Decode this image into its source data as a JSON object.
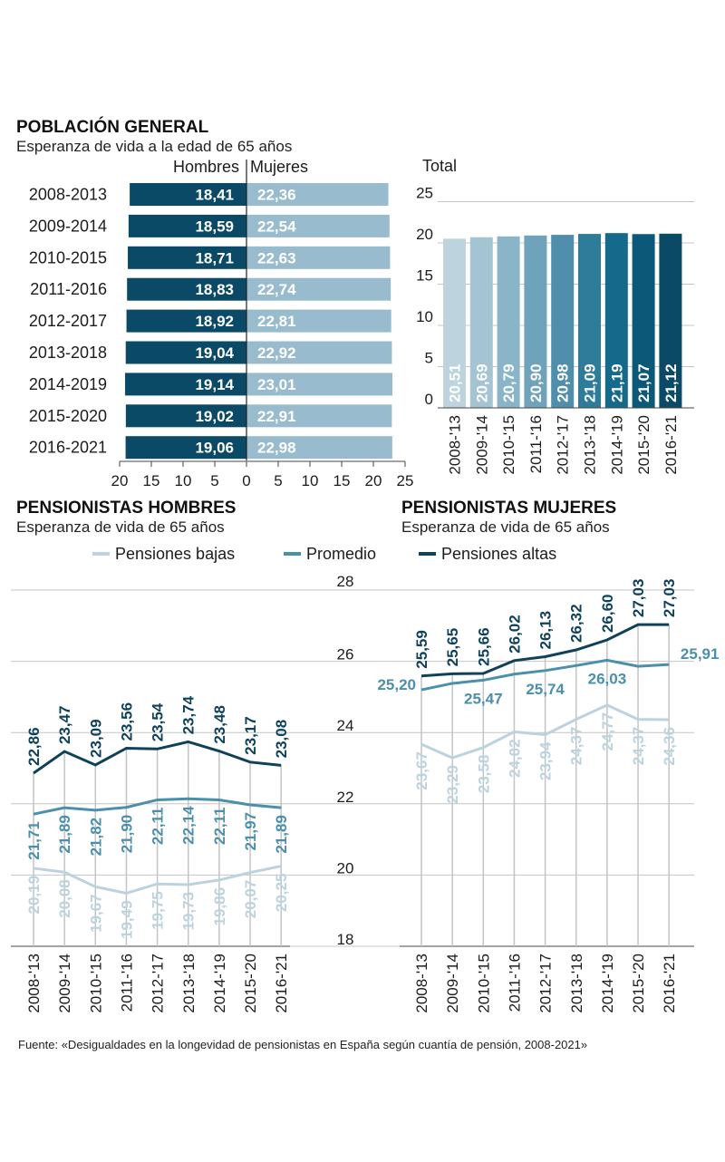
{
  "sections": {
    "general_title": "POBLACIÓN GENERAL",
    "general_subtitle": "Esperanza de vida a la edad de 65 años",
    "hombres_title": "PENSIONISTAS HOMBRES",
    "hombres_subtitle": "Esperanza de vida de 65 años",
    "mujeres_title": "PENSIONISTAS MUJERES",
    "mujeres_subtitle": "Esperanza de vida de 65 años"
  },
  "source": "Fuente: «Desigualdades en la longevidad de pensionistas en España según cuantía de pensión, 2008-2021»",
  "colors": {
    "hombres": "#0b4a66",
    "mujeres": "#98bccd",
    "pension_bajas": "#bcd3df",
    "promedio": "#4a8fac",
    "pension_altas": "#0f425a",
    "grid": "#c4c4c4",
    "total_bars": [
      "#bdd4df",
      "#a4c4d4",
      "#8ab4c8",
      "#6fa2bb",
      "#4f8fac",
      "#2f7b9a",
      "#15698a",
      "#0c5879",
      "#0b4a66"
    ]
  },
  "chart_data": [
    {
      "type": "bar",
      "orientation": "horizontal-butterfly",
      "title": "Esperanza de vida a la edad de 65 años",
      "categories": [
        "2008-2013",
        "2009-2014",
        "2010-2015",
        "2011-2016",
        "2012-2017",
        "2013-2018",
        "2014-2019",
        "2015-2020",
        "2016-2021"
      ],
      "series": [
        {
          "name": "Hombres",
          "values": [
            18.41,
            18.59,
            18.71,
            18.83,
            18.92,
            19.04,
            19.14,
            19.02,
            19.06
          ],
          "labels": [
            "18,41",
            "18,59",
            "18,71",
            "18,83",
            "18,92",
            "19,04",
            "19,14",
            "19,02",
            "19,06"
          ]
        },
        {
          "name": "Mujeres",
          "values": [
            22.36,
            22.54,
            22.63,
            22.74,
            22.81,
            22.92,
            23.01,
            22.91,
            22.98
          ],
          "labels": [
            "22,36",
            "22,54",
            "22,63",
            "22,74",
            "22,81",
            "22,92",
            "23,01",
            "22,91",
            "22,98"
          ]
        }
      ],
      "axis_ticks": [
        "20",
        "15",
        "10",
        "5",
        "0",
        "5",
        "10",
        "15",
        "20",
        "25"
      ],
      "xlim": [
        -20,
        25
      ]
    },
    {
      "type": "bar",
      "title": "Total",
      "categories": [
        "2008-'13",
        "2009-'14",
        "2010-'15",
        "2011-'16",
        "2012-'17",
        "2013-'18",
        "2014-'19",
        "2015-'20",
        "2016-'21"
      ],
      "values": [
        20.51,
        20.69,
        20.79,
        20.9,
        20.98,
        21.09,
        21.19,
        21.07,
        21.12
      ],
      "labels": [
        "20,51",
        "20,69",
        "20,79",
        "20,90",
        "20,98",
        "21,09",
        "21,19",
        "21,07",
        "21,12"
      ],
      "yticks": [
        "0",
        "5",
        "10",
        "15",
        "20",
        "25"
      ],
      "ylim": [
        0,
        25
      ]
    },
    {
      "type": "line",
      "title": "PENSIONISTAS HOMBRES",
      "categories": [
        "2008-'13",
        "2009-'14",
        "2010-'15",
        "2011-'16",
        "2012-'17",
        "2013-'18",
        "2014-'19",
        "2015-'20",
        "2016-'21"
      ],
      "series": [
        {
          "name": "Pensiones bajas",
          "values": [
            20.19,
            20.08,
            19.67,
            19.49,
            19.75,
            19.73,
            19.86,
            20.07,
            20.25
          ],
          "labels": [
            "20,19",
            "20,08",
            "19,67",
            "19,49",
            "19,75",
            "19,73",
            "19,86",
            "20,07",
            "20,25"
          ]
        },
        {
          "name": "Promedio",
          "values": [
            21.71,
            21.89,
            21.82,
            21.9,
            22.11,
            22.14,
            22.11,
            21.97,
            21.89
          ],
          "labels": [
            "21,71",
            "21,89",
            "21,82",
            "21,90",
            "22,11",
            "22,14",
            "22,11",
            "21,97",
            "21,89"
          ]
        },
        {
          "name": "Pensiones altas",
          "values": [
            22.86,
            23.47,
            23.09,
            23.56,
            23.54,
            23.74,
            23.48,
            23.17,
            23.08
          ],
          "labels": [
            "22,86",
            "23,47",
            "23,09",
            "23,56",
            "23,54",
            "23,74",
            "23,48",
            "23,17",
            "23,08"
          ]
        }
      ],
      "yticks": [
        "18",
        "20",
        "22",
        "24",
        "26",
        "28"
      ],
      "ylim": [
        18,
        28
      ]
    },
    {
      "type": "line",
      "title": "PENSIONISTAS MUJERES",
      "categories": [
        "2008-'13",
        "2009-'14",
        "2010-'15",
        "2011-'16",
        "2012-'17",
        "2013-'18",
        "2014-'19",
        "2015-'20",
        "2016-'21"
      ],
      "series": [
        {
          "name": "Pensiones bajas",
          "values": [
            23.67,
            23.29,
            23.58,
            24.02,
            23.94,
            24.37,
            24.77,
            24.37,
            24.36
          ],
          "labels": [
            "23,67",
            "23,29",
            "23,58",
            "24,02",
            "23,94",
            "24,37",
            "24,77",
            "24,37",
            "24,36"
          ]
        },
        {
          "name": "Promedio",
          "values": [
            25.2,
            25.38,
            25.47,
            25.64,
            25.74,
            25.88,
            26.03,
            25.86,
            25.91
          ],
          "labels": [
            "25,20",
            "",
            "25,47",
            "",
            "25,74",
            "",
            "26,03",
            "",
            "25,91"
          ]
        },
        {
          "name": "Pensiones altas",
          "values": [
            25.59,
            25.65,
            25.66,
            26.02,
            26.13,
            26.32,
            26.6,
            27.03,
            27.03
          ],
          "labels": [
            "25,59",
            "25,65",
            "25,66",
            "26,02",
            "26,13",
            "26,32",
            "26,60",
            "27,03",
            "27,03"
          ]
        }
      ],
      "yticks": [
        "18",
        "20",
        "22",
        "24",
        "26",
        "28"
      ],
      "ylim": [
        18,
        28
      ]
    }
  ]
}
